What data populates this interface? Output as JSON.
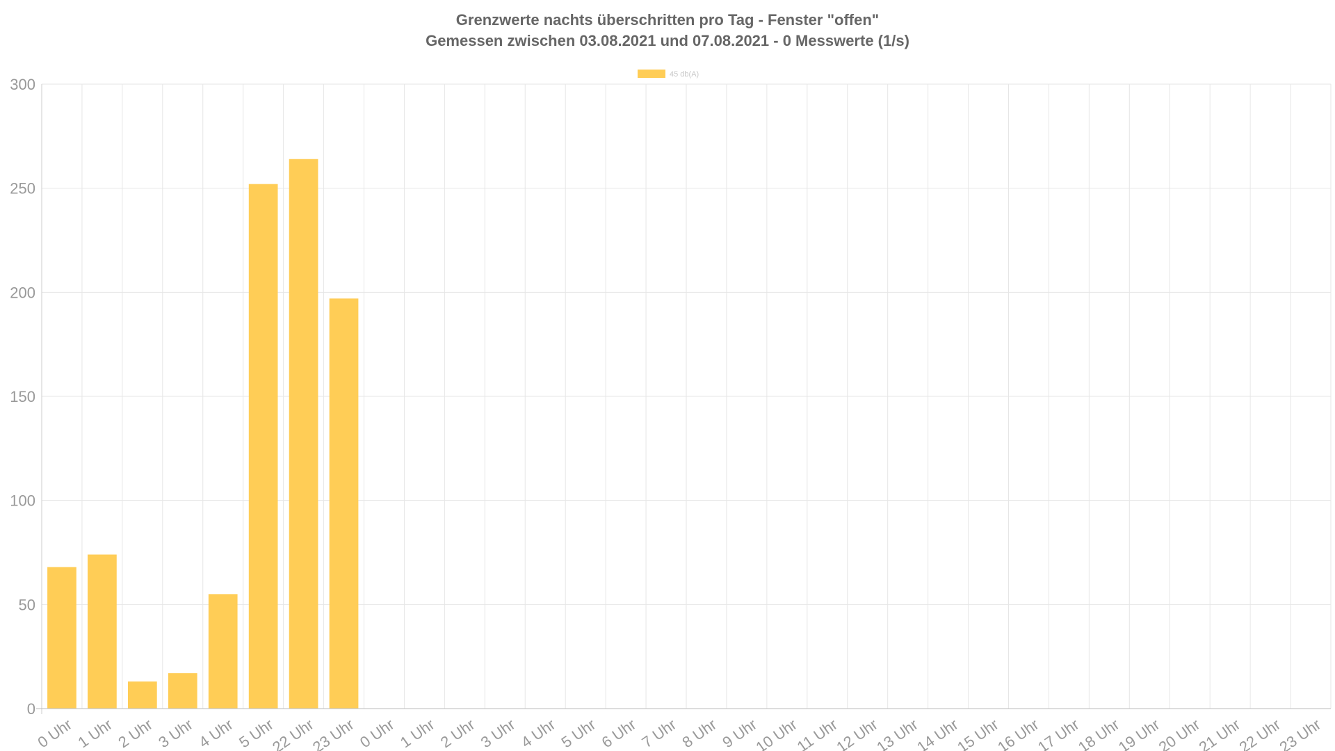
{
  "chart_data": {
    "type": "bar",
    "title": "Grenzwerte nachts überschritten pro Tag - Fenster \"offen\"",
    "subtitle": "Gemessen zwischen 03.08.2021 und 07.08.2021 - 0 Messwerte (1/s)",
    "xlabel": "",
    "ylabel": "",
    "ylim": [
      0,
      300
    ],
    "yticks": [
      0,
      50,
      100,
      150,
      200,
      250,
      300
    ],
    "grid": true,
    "legend_position": "top-center",
    "categories": [
      "0 Uhr",
      "1 Uhr",
      "2 Uhr",
      "3 Uhr",
      "4 Uhr",
      "5 Uhr",
      "22 Uhr",
      "23 Uhr",
      "0 Uhr",
      "1 Uhr",
      "2 Uhr",
      "3 Uhr",
      "4 Uhr",
      "5 Uhr",
      "6 Uhr",
      "7 Uhr",
      "8 Uhr",
      "9 Uhr",
      "10 Uhr",
      "11 Uhr",
      "12 Uhr",
      "13 Uhr",
      "14 Uhr",
      "15 Uhr",
      "16 Uhr",
      "17 Uhr",
      "18 Uhr",
      "19 Uhr",
      "20 Uhr",
      "21 Uhr",
      "22 Uhr",
      "23 Uhr"
    ],
    "series": [
      {
        "name": "45 db(A)",
        "color": "#ffcd56",
        "values": [
          68,
          74,
          13,
          17,
          55,
          252,
          264,
          197,
          0,
          0,
          0,
          0,
          0,
          0,
          0,
          0,
          0,
          0,
          0,
          0,
          0,
          0,
          0,
          0,
          0,
          0,
          0,
          0,
          0,
          0,
          0,
          0
        ]
      }
    ]
  }
}
